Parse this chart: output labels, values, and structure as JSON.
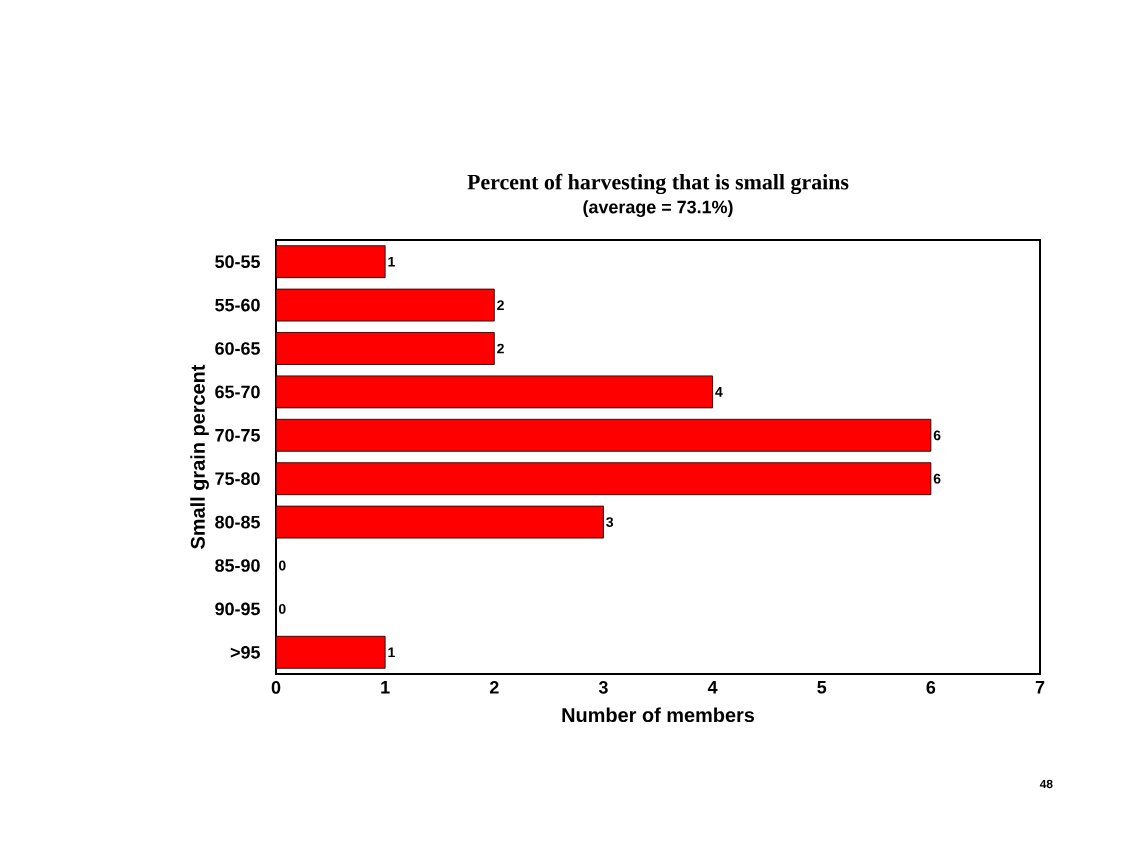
{
  "chart_data": {
    "type": "bar",
    "orientation": "horizontal",
    "title": "Percent of harvesting that is small grains",
    "subtitle": "(average = 73.1%)",
    "xlabel": "Number of members",
    "ylabel": "Small grain percent",
    "categories": [
      "50-55",
      "55-60",
      "60-65",
      "65-70",
      "70-75",
      "75-80",
      "80-85",
      "85-90",
      "90-95",
      ">95"
    ],
    "values": [
      1,
      2,
      2,
      4,
      6,
      6,
      3,
      0,
      0,
      1
    ],
    "color": "#ff0000",
    "xlim": [
      0,
      7
    ],
    "xticks": [
      0,
      1,
      2,
      3,
      4,
      5,
      6,
      7
    ],
    "data_labels": true,
    "grid": false,
    "annotations": [
      "48"
    ]
  }
}
